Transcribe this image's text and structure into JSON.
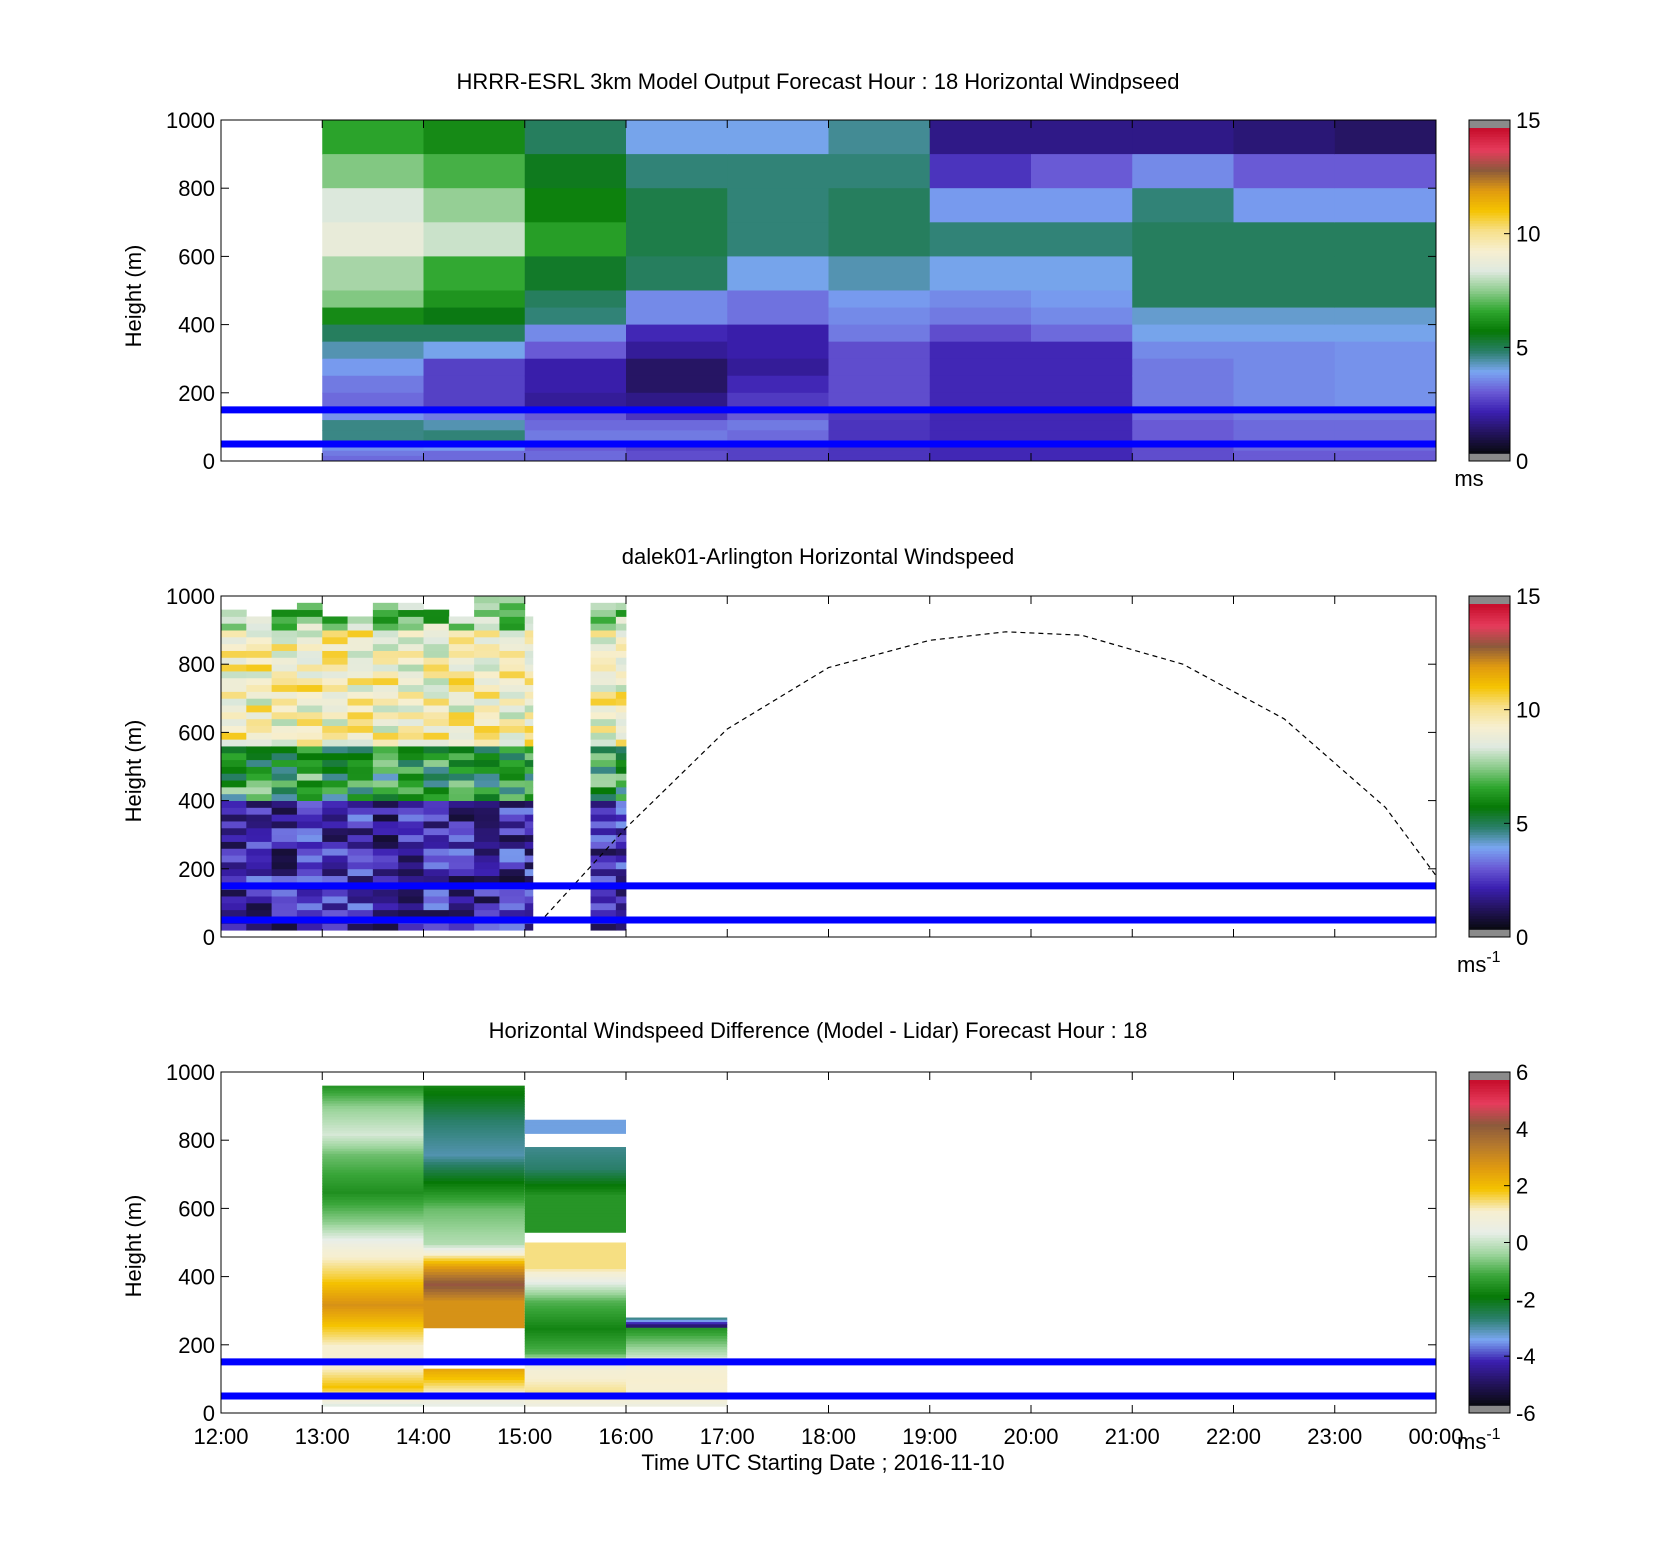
{
  "palettes": {
    "speed": [
      "#141432",
      "#2a1070",
      "#4a1dc0",
      "#6a5ad8",
      "#7aa0f0",
      "#2f8a6a",
      "#0a7a0a",
      "#2fa42f",
      "#7fc87f",
      "#dfe9df",
      "#f0eed8",
      "#f5d060",
      "#f0b800",
      "#d09030",
      "#9a6a4a",
      "#e04060",
      "#d8103a"
    ],
    "diff": [
      "#141432",
      "#2a1070",
      "#4a1dc0",
      "#7aa0f0",
      "#1f6a5a",
      "#0a7a0a",
      "#3aa63a",
      "#8fd08f",
      "#e5ece5",
      "#f3f0dc",
      "#f5d060",
      "#f0b800",
      "#d89020",
      "#9a6a4a",
      "#e04060",
      "#d8103a"
    ],
    "wind_colors": [
      "#0a0a14",
      "#24145f",
      "#3b1fb0",
      "#6a5bd6",
      "#7aa6f2",
      "#2a7f6a",
      "#067806",
      "#2ea62e",
      "#8ccc8c",
      "#dfe9df",
      "#f7efd0",
      "#f7e08a",
      "#f5c300",
      "#e09a10",
      "#8c5a3c",
      "#e63c5c",
      "#c8102e"
    ],
    "diff_colors": [
      "#0a0a14",
      "#24145f",
      "#3b1fb0",
      "#7aa6f2",
      "#2a7f6a",
      "#067806",
      "#3aa63a",
      "#9fd69f",
      "#e8eee8",
      "#f7efd0",
      "#f5c300",
      "#e09a10",
      "#b77a2c",
      "#8c5a3c",
      "#e63c5c",
      "#c8102e"
    ]
  },
  "reference_lines_m": [
    50,
    150
  ],
  "chart_data": [
    {
      "type": "heatmap",
      "id": "model",
      "title": "HRRR-ESRL 3km Model Output   Forecast Hour : 18 Horizontal Windpseed",
      "xlabel": "",
      "ylabel": "Height (m)",
      "x_ticks": [
        "12:00",
        "13:00",
        "14:00",
        "15:00",
        "16:00",
        "17:00",
        "18:00",
        "19:00",
        "20:00",
        "21:00",
        "22:00",
        "23:00",
        "00:00"
      ],
      "xlim_hours": [
        12,
        24
      ],
      "ylim": [
        0,
        1000
      ],
      "y_ticks": [
        0,
        200,
        400,
        600,
        800,
        1000
      ],
      "colorbar": {
        "ticks": [
          "0",
          "5",
          "10",
          "15"
        ],
        "unit": "ms",
        "unit_sup": "",
        "range": [
          0,
          15
        ]
      },
      "note": "values are wind speed in m/s for hourly columns starting 13:00 through 23:00, rows listed top(1000m) to bottom",
      "data": {
        "row_edges_m": [
          1000,
          900,
          800,
          700,
          600,
          500,
          450,
          400,
          350,
          300,
          250,
          200,
          150,
          120,
          90,
          60,
          30,
          15,
          0
        ],
        "columns": [
          [
            6.5,
            7.4,
            8.4,
            8.8,
            7.8,
            7.4,
            6.0,
            4.8,
            4.2,
            3.6,
            3.2,
            3.0,
            3.5,
            4.5,
            4.5,
            3.5,
            3.2,
            3.0
          ],
          [
            6.0,
            6.8,
            7.6,
            8.2,
            6.6,
            6.2,
            5.5,
            4.8,
            3.8,
            2.4,
            2.4,
            2.4,
            3.2,
            4.2,
            4.6,
            3.6,
            3.0,
            3.0
          ],
          [
            4.8,
            5.4,
            5.8,
            6.4,
            5.3,
            4.8,
            4.6,
            3.4,
            2.8,
            1.8,
            1.8,
            1.6,
            2.8,
            3.0,
            3.2,
            2.8,
            3.0,
            3.0
          ],
          [
            3.8,
            4.6,
            5.0,
            5.0,
            4.8,
            3.4,
            3.4,
            2.0,
            1.6,
            1.0,
            1.0,
            1.4,
            2.2,
            3.0,
            3.2,
            2.4,
            2.6,
            2.6
          ],
          [
            3.8,
            4.6,
            4.6,
            4.6,
            3.8,
            3.1,
            3.1,
            1.8,
            1.8,
            1.6,
            2.0,
            2.3,
            2.8,
            3.2,
            3.0,
            2.4,
            2.4,
            2.4
          ],
          [
            4.4,
            4.6,
            4.8,
            4.8,
            4.2,
            3.6,
            3.4,
            3.2,
            2.6,
            2.6,
            2.6,
            2.6,
            2.3,
            2.2,
            2.2,
            2.2,
            2.2,
            2.2
          ],
          [
            1.4,
            2.2,
            3.6,
            4.6,
            3.8,
            3.4,
            3.2,
            2.6,
            2.0,
            2.0,
            2.0,
            2.0,
            2.0,
            2.0,
            2.0,
            2.0,
            2.0,
            2.0
          ],
          [
            1.4,
            2.8,
            3.6,
            4.6,
            3.8,
            3.6,
            3.4,
            3.0,
            2.0,
            2.0,
            2.0,
            2.0,
            2.0,
            2.0,
            2.0,
            2.0,
            2.0,
            2.0
          ],
          [
            1.4,
            3.4,
            4.6,
            4.8,
            4.8,
            4.8,
            4.0,
            3.8,
            3.4,
            3.2,
            3.2,
            3.2,
            3.0,
            2.8,
            2.8,
            2.6,
            2.6,
            2.6
          ],
          [
            1.2,
            2.8,
            3.6,
            4.8,
            4.8,
            4.8,
            4.0,
            3.8,
            3.4,
            3.4,
            3.4,
            3.4,
            3.2,
            3.0,
            3.0,
            3.0,
            2.8,
            2.8
          ]
        ],
        "extra_column_11": [
          1.0,
          2.8,
          3.6,
          4.8,
          4.8,
          4.8,
          4.0,
          3.8,
          3.5,
          3.5,
          3.5,
          3.5,
          3.2,
          3.0,
          3.0,
          3.0,
          2.8,
          2.8
        ]
      }
    },
    {
      "type": "heatmap",
      "id": "lidar",
      "title": "dalek01-Arlington  Horizontal Windspeed",
      "xlabel": "",
      "ylabel": "Height (m)",
      "x_ticks": [
        "12:00",
        "13:00",
        "14:00",
        "15:00",
        "16:00",
        "17:00",
        "18:00",
        "19:00",
        "20:00",
        "21:00",
        "22:00",
        "23:00",
        "00:00"
      ],
      "xlim_hours": [
        12,
        24
      ],
      "ylim": [
        0,
        1000
      ],
      "y_ticks": [
        0,
        200,
        400,
        600,
        800,
        1000
      ],
      "colorbar": {
        "ticks": [
          "0",
          "5",
          "10",
          "15"
        ],
        "unit": "ms",
        "unit_sup": "-1",
        "range": [
          0,
          15
        ]
      },
      "data_coverage_hours": [
        [
          12.0,
          15.08
        ],
        [
          15.65,
          16.0
        ]
      ],
      "profile_summary": [
        {
          "height_range_m": [
            900,
            1000
          ],
          "speed_ms": 7.5
        },
        {
          "height_range_m": [
            550,
            900
          ],
          "speed_ms": 9.5
        },
        {
          "height_range_m": [
            400,
            550
          ],
          "speed_ms": 6.0
        },
        {
          "height_range_m": [
            0,
            400
          ],
          "speed_ms": 2.0
        }
      ],
      "dashed_curve": {
        "note": "dashed arc, height in m vs hour",
        "x_hours": [
          15.2,
          16.0,
          17.0,
          18.0,
          19.0,
          19.75,
          20.5,
          21.5,
          22.5,
          23.5,
          24.0
        ],
        "y_m": [
          60,
          320,
          610,
          790,
          870,
          895,
          885,
          800,
          640,
          380,
          180
        ]
      }
    },
    {
      "type": "heatmap",
      "id": "diff",
      "title": "Horizontal Windspeed Difference (Model - Lidar) Forecast Hour : 18",
      "xlabel": "Time UTC  Starting Date ; 2016-11-10",
      "ylabel": "Height (m)",
      "x_ticks": [
        "12:00",
        "13:00",
        "14:00",
        "15:00",
        "16:00",
        "17:00",
        "18:00",
        "19:00",
        "20:00",
        "21:00",
        "22:00",
        "23:00",
        "00:00"
      ],
      "xlim_hours": [
        12,
        24
      ],
      "ylim": [
        0,
        1000
      ],
      "y_ticks": [
        0,
        200,
        400,
        600,
        800,
        1000
      ],
      "colorbar": {
        "ticks": [
          "-6",
          "-4",
          "-2",
          "0",
          "2",
          "4",
          "6"
        ],
        "unit": "ms",
        "unit_sup": "-1",
        "range": [
          -6,
          6
        ]
      },
      "blocks": [
        {
          "hours": [
            13,
            14
          ],
          "heights_m": [
            20,
            960
          ],
          "profile": [
            [
              960,
              -1.5
            ],
            [
              900,
              -0.5
            ],
            [
              820,
              0.2
            ],
            [
              760,
              -0.8
            ],
            [
              650,
              -1.6
            ],
            [
              560,
              -0.5
            ],
            [
              480,
              1.0
            ],
            [
              400,
              1.8
            ],
            [
              320,
              3.0
            ],
            [
              260,
              2.0
            ],
            [
              200,
              1.2
            ],
            [
              150,
              1.0
            ],
            [
              80,
              2.0
            ],
            [
              40,
              1.0
            ],
            [
              20,
              0.0
            ]
          ]
        },
        {
          "hours": [
            14,
            15
          ],
          "heights_m": [
            20,
            960
          ],
          "profile": [
            [
              960,
              -1.8
            ],
            [
              860,
              -2.8
            ],
            [
              760,
              -3.2
            ],
            [
              680,
              -2.0
            ],
            [
              600,
              -0.8
            ],
            [
              500,
              -0.2
            ],
            [
              430,
              2.8
            ],
            [
              380,
              4.5
            ],
            [
              330,
              3.0
            ],
            [
              250,
              null
            ],
            [
              130,
              2.5
            ],
            [
              80,
              1.5
            ],
            [
              40,
              0.8
            ],
            [
              20,
              0.3
            ]
          ]
        },
        {
          "hours": [
            15,
            16
          ],
          "heights_m": [
            20,
            860
          ],
          "profile": [
            [
              860,
              -3.5
            ],
            [
              820,
              null
            ],
            [
              780,
              -3.0
            ],
            [
              720,
              -2.8
            ],
            [
              640,
              -1.5
            ],
            [
              530,
              null
            ],
            [
              500,
              1.5
            ],
            [
              430,
              1.5
            ],
            [
              330,
              -1.0
            ],
            [
              250,
              -1.8
            ],
            [
              180,
              -1.0
            ],
            [
              130,
              1.0
            ],
            [
              60,
              1.5
            ],
            [
              20,
              0.5
            ]
          ]
        },
        {
          "hours": [
            16,
            17
          ],
          "heights_m": [
            20,
            280
          ],
          "profile": [
            [
              280,
              -3.0
            ],
            [
              260,
              -5.0
            ],
            [
              250,
              -1.5
            ],
            [
              170,
              0.0
            ],
            [
              150,
              1.0
            ],
            [
              100,
              1.2
            ],
            [
              40,
              1.0
            ],
            [
              20,
              0.5
            ]
          ]
        }
      ]
    }
  ]
}
